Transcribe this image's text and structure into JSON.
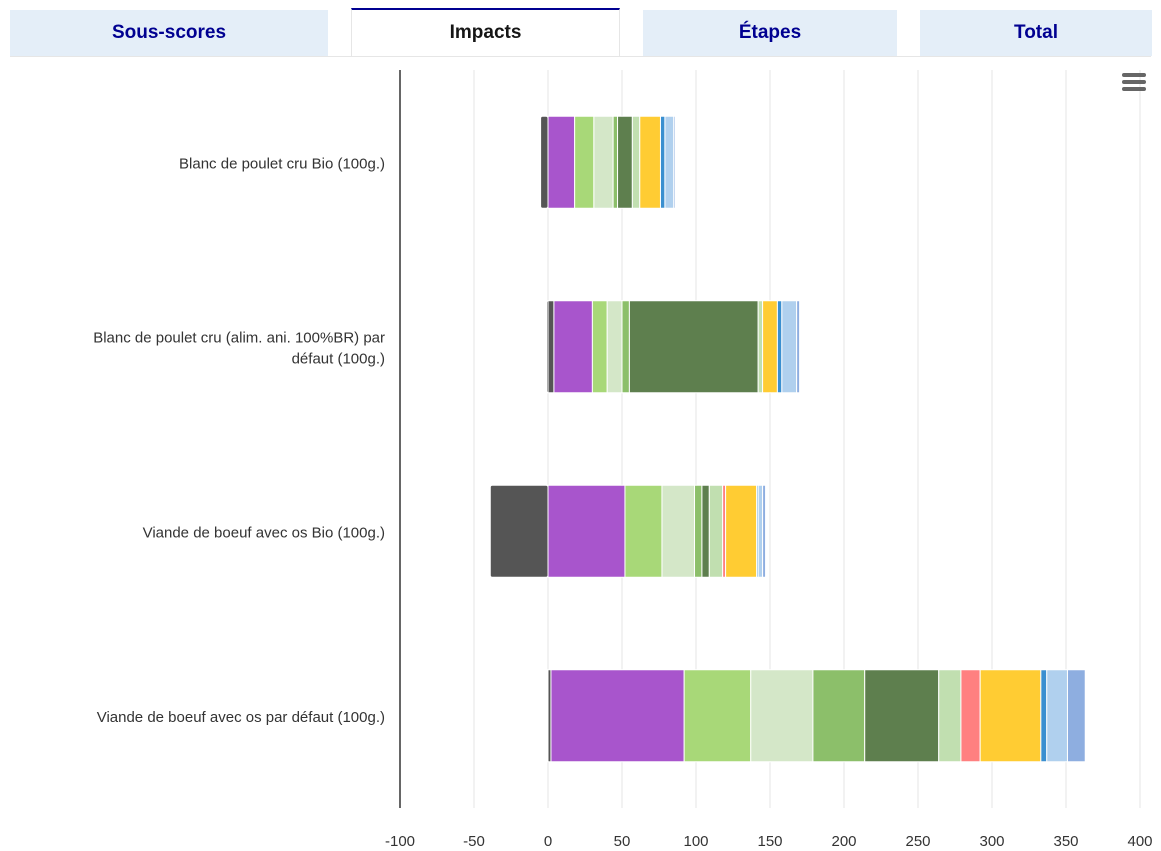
{
  "tabs": [
    {
      "label": "Sous-scores",
      "active": false
    },
    {
      "label": "Impacts",
      "active": true
    },
    {
      "label": "Étapes",
      "active": false
    },
    {
      "label": "Total",
      "active": false
    }
  ],
  "chart_data": {
    "type": "bar",
    "orientation": "horizontal",
    "stacked": true,
    "categories": [
      [
        "Blanc de poulet cru Bio (100g.)"
      ],
      [
        "Blanc de poulet cru (alim. ani. 100%BR) par",
        "défaut (100g.)"
      ],
      [
        "Viande de boeuf avec os Bio (100g.)"
      ],
      [
        "Viande de boeuf avec os par défaut (100g.)"
      ]
    ],
    "negative_series": {
      "color": "#555555",
      "values": [
        -5,
        -1,
        -39,
        0
      ]
    },
    "series": [
      {
        "color": "#555555",
        "values": [
          0,
          4,
          0,
          2
        ]
      },
      {
        "color": "#a855cc",
        "values": [
          18,
          26,
          52,
          90
        ]
      },
      {
        "color": "#a8d878",
        "values": [
          13,
          10,
          25,
          45
        ]
      },
      {
        "color": "#d4e7c8",
        "values": [
          13,
          10,
          22,
          42
        ]
      },
      {
        "color": "#8cbf6a",
        "values": [
          3,
          5,
          5,
          35
        ]
      },
      {
        "color": "#5e7f4e",
        "values": [
          10,
          87,
          5,
          50
        ]
      },
      {
        "color": "#c1dfb0",
        "values": [
          5,
          3,
          9,
          15
        ]
      },
      {
        "color": "#ff8080",
        "values": [
          0,
          0,
          2,
          13
        ]
      },
      {
        "color": "#ffcc33",
        "values": [
          14,
          10,
          21,
          41
        ]
      },
      {
        "color": "#3a8fd0",
        "values": [
          3,
          3,
          1,
          4
        ]
      },
      {
        "color": "#b0d0ee",
        "values": [
          6,
          10,
          3,
          14
        ]
      },
      {
        "color": "#8eaee0",
        "values": [
          1,
          2,
          2,
          12
        ]
      }
    ],
    "xlim": [
      -100,
      400
    ],
    "xticks": [
      -100,
      -50,
      0,
      50,
      100,
      150,
      200,
      250,
      300,
      350,
      400
    ],
    "grid": true,
    "legend": "none"
  }
}
